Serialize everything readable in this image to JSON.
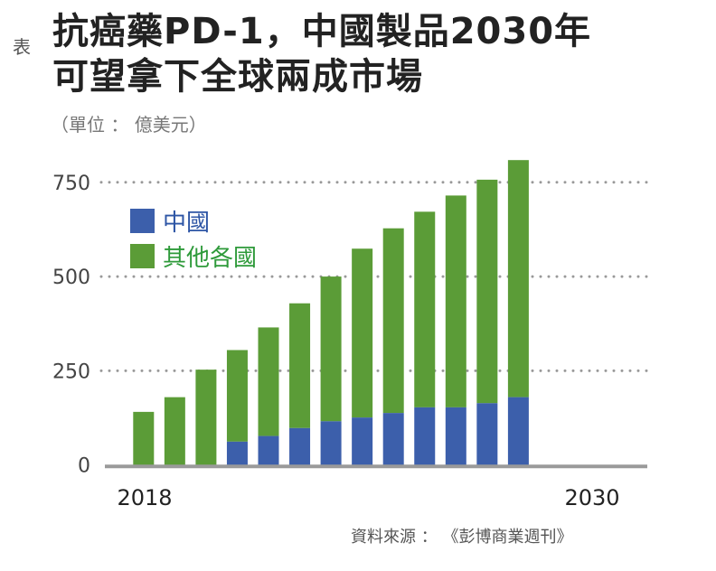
{
  "title_prefix": "表",
  "title_line1": "抗癌藥PD-1，中國製品2030年",
  "title_line2": "可望拿下全球兩成市場",
  "unit": "（單位 ： 億美元）",
  "source": "資料來源 ： 《彭博商業週刊》",
  "colors": {
    "china": "#3c5fab",
    "others": "#5b9c37",
    "grid": "#999999",
    "axis": "#9a9a9a"
  },
  "chart_data": {
    "type": "bar",
    "stacked": true,
    "title": "抗癌藥PD-1，中國製品2030年可望拿下全球兩成市場",
    "ylabel": "億美元",
    "x": [
      2018,
      2019,
      2020,
      2021,
      2022,
      2023,
      2024,
      2025,
      2026,
      2027,
      2028,
      2029,
      2030
    ],
    "x_tick_labels": [
      "2018",
      "2030"
    ],
    "y_ticks": [
      "0",
      "250",
      "500",
      "750"
    ],
    "ylim": [
      0,
      820
    ],
    "grid": true,
    "legend": {
      "position": "top-left",
      "entries": [
        "中國",
        "其他各國"
      ]
    },
    "series": [
      {
        "name": "中國",
        "values": [
          0,
          0,
          0,
          62,
          77,
          98,
          116,
          126,
          138,
          153,
          153,
          164,
          180
        ]
      },
      {
        "name": "其他各國",
        "values": [
          141,
          180,
          253,
          243,
          288,
          331,
          384,
          448,
          490,
          519,
          562,
          593,
          629
        ]
      }
    ],
    "totals": [
      141,
      180,
      253,
      305,
      365,
      429,
      500,
      574,
      628,
      672,
      715,
      757,
      809
    ]
  }
}
